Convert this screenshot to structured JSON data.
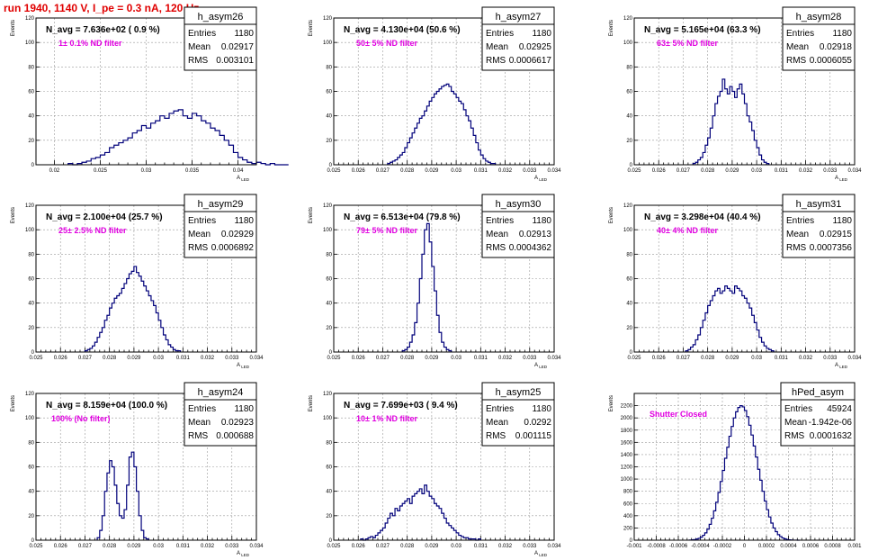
{
  "header": {
    "title": "run 1940,  1140 V, I_pe = 0.3 nA, 120 Hz"
  },
  "labels": {
    "entries": "Entries",
    "mean": "Mean",
    "rms": "RMS"
  },
  "colors": {
    "histogram": "#00007a",
    "annotation": "#e000e0",
    "title": "#e00000",
    "grid": "#9a9a9a"
  },
  "chart_data": [
    {
      "type": "bar",
      "name": "h_asym26",
      "annotation": "N_avg = 7.636e+02 ( 0.9 %)",
      "filter_label": "1± 0.1% ND filter",
      "stats": {
        "entries": "1180",
        "mean": "0.02917",
        "rms": "0.003101"
      },
      "ylabel": "Events",
      "xlabel": "A_LED",
      "xlim": [
        0.018,
        0.042
      ],
      "ylim": [
        0,
        120
      ],
      "xticks": [
        0.02,
        0.025,
        0.03,
        0.035,
        0.04
      ],
      "xticklabels": [
        "0.02",
        "0.025",
        "0.03",
        "0.035",
        "0.04"
      ],
      "yticks": [
        0,
        20,
        40,
        60,
        80,
        100,
        120
      ],
      "bins": {
        "start": 0.0215,
        "width": 0.0005,
        "values": [
          1,
          0,
          1,
          2,
          3,
          5,
          6,
          8,
          10,
          14,
          16,
          18,
          20,
          22,
          26,
          28,
          32,
          30,
          34,
          36,
          40,
          38,
          42,
          44,
          45,
          40,
          38,
          42,
          40,
          36,
          34,
          30,
          28,
          24,
          20,
          16,
          10,
          6,
          4,
          2,
          1,
          2,
          1,
          0,
          1,
          0,
          0,
          0
        ]
      }
    },
    {
      "type": "bar",
      "name": "h_asym27",
      "annotation": "N_avg = 4.130e+04 (50.6 %)",
      "filter_label": "50± 5% ND filter",
      "stats": {
        "entries": "1180",
        "mean": "0.02925",
        "rms": "0.0006617"
      },
      "ylabel": "Events",
      "xlabel": "A_LED",
      "xlim": [
        0.025,
        0.034
      ],
      "ylim": [
        0,
        120
      ],
      "xticks": [
        0.025,
        0.026,
        0.027,
        0.028,
        0.029,
        0.03,
        0.031,
        0.032,
        0.033,
        0.034
      ],
      "xticklabels": [
        "0.025",
        "0.026",
        "0.027",
        "0.028",
        "0.029",
        "0.03",
        "0.031",
        "0.032",
        "0.033",
        "0.034"
      ],
      "yticks": [
        0,
        20,
        40,
        60,
        80,
        100,
        120
      ],
      "bins": {
        "start": 0.0272,
        "width": 0.0001,
        "values": [
          1,
          2,
          3,
          4,
          6,
          8,
          10,
          14,
          18,
          22,
          26,
          30,
          34,
          38,
          40,
          44,
          48,
          52,
          55,
          58,
          60,
          62,
          64,
          65,
          66,
          64,
          60,
          58,
          55,
          52,
          50,
          45,
          40,
          36,
          30,
          24,
          18,
          12,
          8,
          5,
          3,
          2,
          1,
          1
        ]
      }
    },
    {
      "type": "bar",
      "name": "h_asym28",
      "annotation": "N_avg = 5.165e+04 (63.3 %)",
      "filter_label": "63± 5% ND filter",
      "stats": {
        "entries": "1180",
        "mean": "0.02918",
        "rms": "0.0006055"
      },
      "ylabel": "Events",
      "xlabel": "A_LED",
      "xlim": [
        0.025,
        0.034
      ],
      "ylim": [
        0,
        120
      ],
      "xticks": [
        0.025,
        0.026,
        0.027,
        0.028,
        0.029,
        0.03,
        0.031,
        0.032,
        0.033,
        0.034
      ],
      "xticklabels": [
        "0.025",
        "0.026",
        "0.027",
        "0.028",
        "0.029",
        "0.03",
        "0.031",
        "0.032",
        "0.033",
        "0.034"
      ],
      "yticks": [
        0,
        20,
        40,
        60,
        80,
        100,
        120
      ],
      "bins": {
        "start": 0.0274,
        "width": 0.0001,
        "values": [
          1,
          2,
          4,
          6,
          10,
          16,
          22,
          30,
          40,
          50,
          56,
          60,
          70,
          62,
          58,
          64,
          60,
          55,
          62,
          66,
          58,
          50,
          40,
          35,
          28,
          20,
          14,
          8,
          4,
          2,
          1
        ]
      }
    },
    {
      "type": "bar",
      "name": "h_asym29",
      "annotation": "N_avg = 2.100e+04 (25.7 %)",
      "filter_label": "25± 2.5% ND filter",
      "stats": {
        "entries": "1180",
        "mean": "0.02929",
        "rms": "0.0006892"
      },
      "ylabel": "Events",
      "xlabel": "A_LED",
      "xlim": [
        0.025,
        0.034
      ],
      "ylim": [
        0,
        120
      ],
      "xticks": [
        0.025,
        0.026,
        0.027,
        0.028,
        0.029,
        0.03,
        0.031,
        0.032,
        0.033,
        0.034
      ],
      "xticklabels": [
        "0.025",
        "0.026",
        "0.027",
        "0.028",
        "0.029",
        "0.03",
        "0.031",
        "0.032",
        "0.033",
        "0.034"
      ],
      "yticks": [
        0,
        20,
        40,
        60,
        80,
        100,
        120
      ],
      "bins": {
        "start": 0.027,
        "width": 0.0001,
        "values": [
          1,
          2,
          3,
          5,
          8,
          12,
          16,
          20,
          26,
          30,
          36,
          40,
          44,
          46,
          48,
          52,
          56,
          60,
          64,
          66,
          70,
          65,
          62,
          58,
          54,
          50,
          46,
          42,
          38,
          32,
          26,
          20,
          14,
          10,
          6,
          4,
          2,
          1,
          1
        ]
      }
    },
    {
      "type": "bar",
      "name": "h_asym30",
      "annotation": "N_avg = 6.513e+04 (79.8 %)",
      "filter_label": "79± 5% ND filter",
      "stats": {
        "entries": "1180",
        "mean": "0.02913",
        "rms": "0.0004362"
      },
      "ylabel": "Events",
      "xlabel": "A_LED",
      "xlim": [
        0.025,
        0.034
      ],
      "ylim": [
        0,
        120
      ],
      "xticks": [
        0.025,
        0.026,
        0.027,
        0.028,
        0.029,
        0.03,
        0.031,
        0.032,
        0.033,
        0.034
      ],
      "xticklabels": [
        "0.025",
        "0.026",
        "0.027",
        "0.028",
        "0.029",
        "0.03",
        "0.031",
        "0.032",
        "0.033",
        "0.034"
      ],
      "yticks": [
        0,
        20,
        40,
        60,
        80,
        100,
        120
      ],
      "bins": {
        "start": 0.0278,
        "width": 0.0001,
        "values": [
          1,
          2,
          4,
          8,
          14,
          24,
          40,
          60,
          80,
          100,
          105,
          90,
          70,
          50,
          30,
          16,
          8,
          4,
          2,
          1
        ]
      }
    },
    {
      "type": "bar",
      "name": "h_asym31",
      "annotation": "N_avg = 3.298e+04 (40.4 %)",
      "filter_label": "40± 4% ND filter",
      "stats": {
        "entries": "1180",
        "mean": "0.02915",
        "rms": "0.0007356"
      },
      "ylabel": "Events",
      "xlabel": "A_LED",
      "xlim": [
        0.025,
        0.034
      ],
      "ylim": [
        0,
        120
      ],
      "xticks": [
        0.025,
        0.026,
        0.027,
        0.028,
        0.029,
        0.03,
        0.031,
        0.032,
        0.033,
        0.034
      ],
      "xticklabels": [
        "0.025",
        "0.026",
        "0.027",
        "0.028",
        "0.029",
        "0.03",
        "0.031",
        "0.032",
        "0.033",
        "0.034"
      ],
      "yticks": [
        0,
        20,
        40,
        60,
        80,
        100,
        120
      ],
      "bins": {
        "start": 0.0271,
        "width": 0.0001,
        "values": [
          1,
          2,
          4,
          6,
          10,
          14,
          20,
          26,
          32,
          38,
          42,
          46,
          50,
          52,
          48,
          50,
          54,
          52,
          50,
          48,
          54,
          52,
          50,
          46,
          44,
          40,
          36,
          30,
          24,
          18,
          12,
          8,
          5,
          3,
          2,
          1
        ]
      }
    },
    {
      "type": "bar",
      "name": "h_asym24",
      "annotation": "N_avg = 8.159e+04 (100.0 %)",
      "filter_label": "100% (No filter)",
      "stats": {
        "entries": "1180",
        "mean": "0.02923",
        "rms": "0.000688"
      },
      "ylabel": "Events",
      "xlabel": "A_LED",
      "xlim": [
        0.025,
        0.034
      ],
      "ylim": [
        0,
        120
      ],
      "xticks": [
        0.025,
        0.026,
        0.027,
        0.028,
        0.029,
        0.03,
        0.031,
        0.032,
        0.033,
        0.034
      ],
      "xticklabels": [
        "0.025",
        "0.026",
        "0.027",
        "0.028",
        "0.029",
        "0.03",
        "0.031",
        "0.032",
        "0.033",
        "0.034"
      ],
      "yticks": [
        0,
        20,
        40,
        60,
        80,
        100,
        120
      ],
      "bins": {
        "start": 0.0275,
        "width": 0.0001,
        "values": [
          2,
          8,
          20,
          40,
          55,
          65,
          60,
          45,
          30,
          20,
          18,
          25,
          45,
          68,
          72,
          60,
          40,
          20,
          8,
          2,
          1
        ]
      }
    },
    {
      "type": "bar",
      "name": "h_asym25",
      "annotation": "N_avg = 7.699e+03 ( 9.4 %)",
      "filter_label": "10± 1% ND filter",
      "stats": {
        "entries": "1180",
        "mean": "0.0292",
        "rms": "0.001115"
      },
      "ylabel": "Events",
      "xlabel": "A_LED",
      "xlim": [
        0.025,
        0.034
      ],
      "ylim": [
        0,
        120
      ],
      "xticks": [
        0.025,
        0.026,
        0.027,
        0.028,
        0.029,
        0.03,
        0.031,
        0.032,
        0.033,
        0.034
      ],
      "xticklabels": [
        "0.025",
        "0.026",
        "0.027",
        "0.028",
        "0.029",
        "0.03",
        "0.031",
        "0.032",
        "0.033",
        "0.034"
      ],
      "yticks": [
        0,
        20,
        40,
        60,
        80,
        100,
        120
      ],
      "bins": {
        "start": 0.0261,
        "width": 0.0001,
        "values": [
          1,
          0,
          1,
          2,
          3,
          2,
          4,
          6,
          8,
          10,
          14,
          18,
          22,
          20,
          26,
          24,
          28,
          30,
          32,
          34,
          30,
          36,
          38,
          40,
          42,
          38,
          45,
          40,
          36,
          34,
          30,
          28,
          26,
          22,
          18,
          14,
          12,
          10,
          8,
          6,
          4,
          3,
          2,
          2,
          1,
          1,
          1,
          0,
          1
        ]
      }
    },
    {
      "type": "bar",
      "name": "hPed_asym",
      "annotation": "",
      "filter_label": "Shutter Closed",
      "stats": {
        "entries": "45924",
        "mean": "-1.942e-06",
        "rms": "0.0001632"
      },
      "ylabel": "Events",
      "xlabel": "",
      "xlim": [
        -0.001,
        0.001
      ],
      "ylim": [
        0,
        2400
      ],
      "xticks": [
        -0.001,
        -0.0008,
        -0.0006,
        -0.0004,
        -0.0002,
        0,
        0.0002,
        0.0004,
        0.0006,
        0.0008,
        0.001
      ],
      "xticklabels": [
        "-0.001",
        "-0.0008",
        "-0.0006",
        "-0.0004",
        "-0.0002",
        "0",
        "0.0002",
        "0.0004",
        "0.0006",
        "0.0008",
        "0.001"
      ],
      "yticks": [
        0,
        200,
        400,
        600,
        800,
        1000,
        1200,
        1400,
        1600,
        1800,
        2000,
        2200
      ],
      "bins": {
        "start": -0.0005,
        "width": 2e-05,
        "values": [
          2,
          5,
          10,
          18,
          30,
          50,
          80,
          120,
          180,
          260,
          360,
          480,
          620,
          780,
          960,
          1140,
          1340,
          1520,
          1700,
          1860,
          2000,
          2100,
          2170,
          2200,
          2180,
          2120,
          2020,
          1880,
          1720,
          1540,
          1360,
          1160,
          980,
          800,
          640,
          500,
          380,
          280,
          200,
          140,
          90,
          60,
          36,
          22,
          12,
          6,
          3,
          1,
          1,
          0
        ]
      }
    }
  ]
}
